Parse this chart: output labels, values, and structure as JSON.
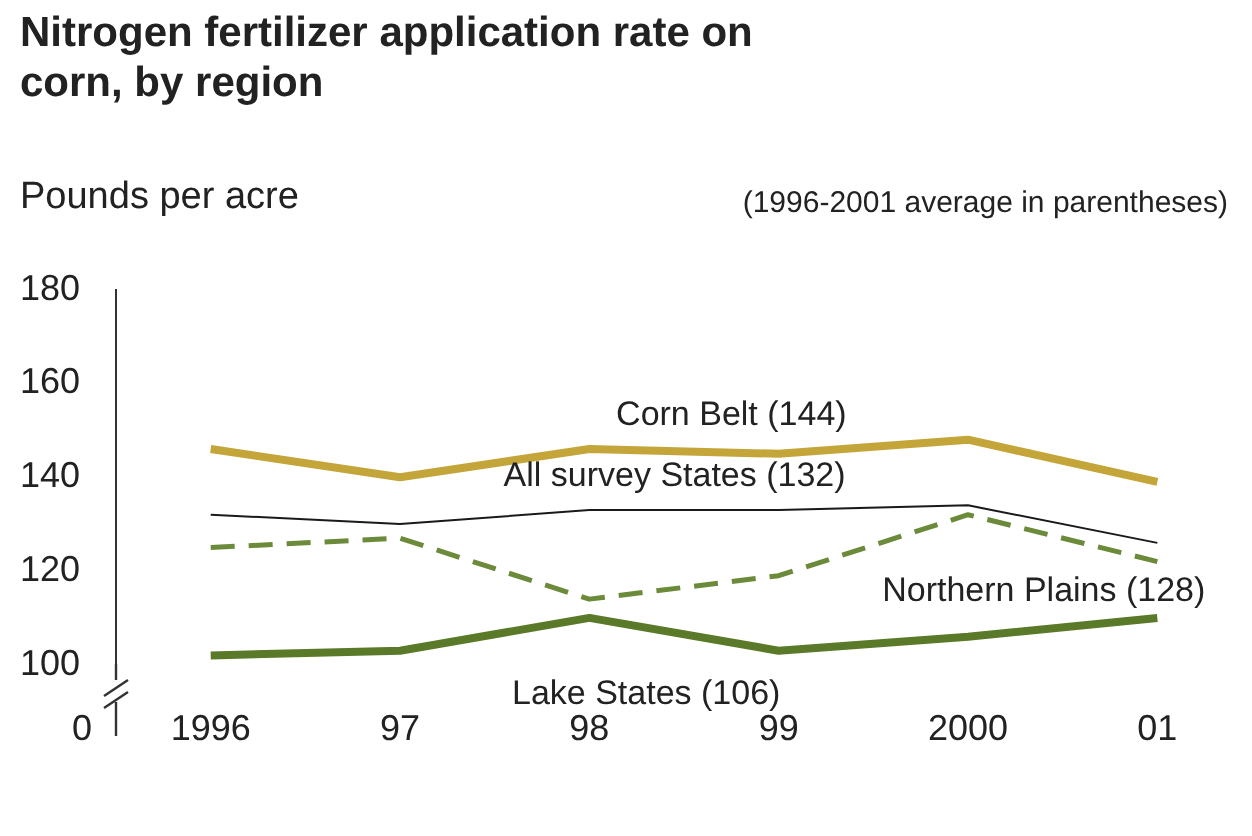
{
  "chart_data": {
    "type": "line",
    "title": "Nitrogen fertilizer application rate on corn, by region",
    "ylabel": "Pounds per acre",
    "annotations": [
      "(1996-2001 average in parentheses)",
      "0"
    ],
    "categories": [
      "1996",
      "97",
      "98",
      "99",
      "2000",
      "01"
    ],
    "series": [
      {
        "name": "Corn Belt (144)",
        "color": "#c4a53a",
        "values": [
          146,
          140,
          146,
          145,
          148,
          139
        ]
      },
      {
        "name": "All survey States (132)",
        "color": "#1a1a1a",
        "values": [
          132,
          130,
          133,
          133,
          134,
          126
        ]
      },
      {
        "name": "Northern Plains (128)",
        "color": "#6b8a3a",
        "values": [
          125,
          127,
          114,
          119,
          132,
          122
        ],
        "line_style": "dashed"
      },
      {
        "name": "Lake States (106)",
        "color": "#5a7a2a",
        "values": [
          102,
          103,
          110,
          103,
          106,
          110
        ]
      }
    ],
    "ylim": [
      100,
      180
    ],
    "yticks": [
      100,
      120,
      140,
      160,
      180
    ],
    "grid": false,
    "legend": false,
    "marker": "none"
  }
}
